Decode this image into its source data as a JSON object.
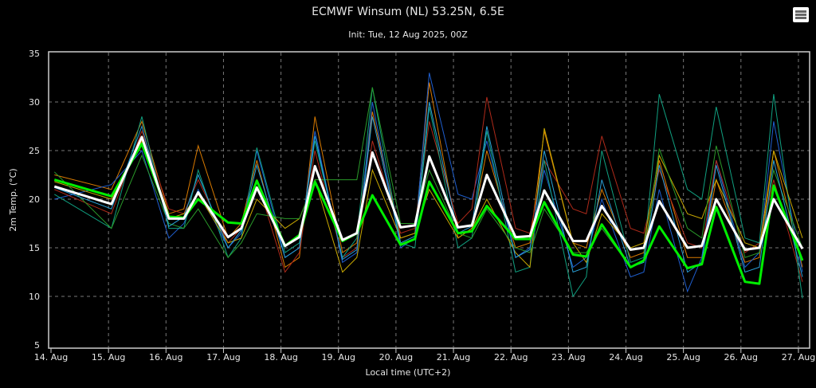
{
  "header": {
    "title": "ECMWF Winsum (NL) 53.25N, 6.5E",
    "subtitle": "Init: Tue, 12 Aug 2025, 00Z",
    "menu_icon": "hamburger-menu-icon"
  },
  "chart_data": {
    "type": "line",
    "title": "ECMWF Winsum (NL) 53.25N, 6.5E",
    "subtitle": "Init: Tue, 12 Aug 2025, 00Z",
    "xlabel": "Local time (UTC+2)",
    "ylabel": "2m Temp. (°C)",
    "ylim": [
      5,
      35
    ],
    "yticks": [
      "5",
      "10",
      "15",
      "20",
      "25",
      "30",
      "35"
    ],
    "xlim_days": [
      -0.05,
      13.2
    ],
    "xticks": [
      "14. Aug",
      "15. Aug",
      "16. Aug",
      "17. Aug",
      "18. Aug",
      "19. Aug",
      "20. Aug",
      "21. Aug",
      "22. Aug",
      "23. Aug",
      "24. Aug",
      "25. Aug",
      "26. Aug",
      "27. Aug"
    ],
    "grid": true,
    "x_days_since_14_aug": [
      0.06,
      1.05,
      1.58,
      2.05,
      2.31,
      2.56,
      3.08,
      3.31,
      3.58,
      4.07,
      4.32,
      4.59,
      5.07,
      5.32,
      5.59,
      6.08,
      6.33,
      6.58,
      7.08,
      7.32,
      7.58,
      8.08,
      8.33,
      8.58,
      9.08,
      9.31,
      9.58,
      10.08,
      10.31,
      10.58,
      11.07,
      11.32,
      11.57,
      12.07,
      12.32,
      12.57,
      13.07
    ],
    "members": [
      {
        "name": "member-1",
        "color": "#d97a00",
        "values": [
          22.5,
          21.0,
          28.0,
          18.5,
          19.0,
          25.5,
          16.0,
          17.5,
          24.0,
          13.0,
          14.0,
          28.5,
          14.5,
          15.5,
          29.0,
          16.0,
          16.5,
          32.0,
          16.0,
          17.0,
          25.0,
          15.0,
          15.5,
          27.0,
          15.5,
          15.0,
          21.0,
          14.0,
          14.5,
          24.0,
          14.0,
          14.0,
          22.0,
          13.5,
          14.0,
          25.0,
          13.0
        ]
      },
      {
        "name": "member-2",
        "color": "#1f5fd0",
        "values": [
          20.0,
          21.5,
          25.0,
          16.0,
          17.5,
          21.0,
          15.0,
          16.5,
          25.0,
          14.0,
          15.0,
          27.0,
          13.5,
          14.5,
          30.0,
          15.0,
          16.0,
          33.0,
          20.5,
          20.0,
          26.0,
          14.0,
          15.0,
          23.0,
          13.0,
          14.0,
          20.0,
          12.0,
          12.5,
          21.0,
          10.5,
          14.0,
          24.0,
          13.0,
          14.5,
          28.0,
          12.5
        ]
      },
      {
        "name": "member-3",
        "color": "#b02a1a",
        "values": [
          21.0,
          18.5,
          27.0,
          19.0,
          18.5,
          22.0,
          15.5,
          17.0,
          22.0,
          12.5,
          14.5,
          25.0,
          14.0,
          15.0,
          26.0,
          16.5,
          17.0,
          28.0,
          17.5,
          19.0,
          30.5,
          17.0,
          16.5,
          24.0,
          19.0,
          18.5,
          26.5,
          17.0,
          16.5,
          23.0,
          15.5,
          15.0,
          24.0,
          14.5,
          15.5,
          22.0,
          11.5
        ]
      },
      {
        "name": "member-4",
        "color": "#10a080",
        "values": [
          20.5,
          17.0,
          28.5,
          17.0,
          17.0,
          23.0,
          14.0,
          16.0,
          25.3,
          14.5,
          15.5,
          26.0,
          14.0,
          16.0,
          31.5,
          15.5,
          15.0,
          29.5,
          15.0,
          16.0,
          27.0,
          12.5,
          13.0,
          24.0,
          10.0,
          12.0,
          25.0,
          13.5,
          14.0,
          30.8,
          21.0,
          20.0,
          29.5,
          16.0,
          15.5,
          30.8,
          9.8
        ]
      },
      {
        "name": "member-5",
        "color": "#c8a800",
        "values": [
          21.8,
          20.0,
          26.0,
          18.0,
          18.5,
          20.5,
          15.5,
          16.0,
          20.0,
          17.0,
          18.0,
          22.0,
          12.5,
          14.0,
          23.0,
          16.0,
          16.5,
          21.0,
          16.0,
          17.0,
          20.0,
          14.5,
          13.0,
          27.3,
          15.5,
          13.5,
          18.5,
          15.0,
          15.5,
          24.5,
          18.5,
          18.0,
          22.0,
          15.5,
          15.0,
          25.0,
          16.0
        ]
      },
      {
        "name": "member-6",
        "color": "#2a9a2a",
        "values": [
          22.8,
          17.0,
          24.5,
          17.5,
          17.0,
          19.0,
          14.0,
          15.5,
          18.5,
          18.0,
          18.0,
          22.0,
          22.0,
          22.0,
          31.5,
          17.5,
          17.5,
          23.0,
          16.5,
          16.0,
          19.0,
          15.0,
          14.5,
          19.0,
          14.5,
          14.5,
          17.0,
          13.0,
          13.5,
          25.2,
          17.0,
          16.0,
          25.5,
          14.0,
          14.5,
          23.0,
          15.0
        ]
      },
      {
        "name": "member-7",
        "color": "#2aa0d8",
        "values": [
          21.2,
          19.0,
          27.5,
          17.2,
          18.2,
          22.5,
          15.0,
          16.8,
          23.5,
          14.0,
          15.0,
          26.5,
          13.8,
          14.8,
          28.5,
          15.5,
          16.2,
          30.0,
          16.5,
          17.2,
          27.5,
          14.0,
          14.8,
          25.0,
          12.5,
          13.0,
          22.0,
          13.0,
          13.5,
          23.5,
          12.5,
          13.5,
          23.5,
          12.5,
          13.0,
          24.0,
          12.0
        ]
      }
    ],
    "series": [
      {
        "name": "ensemble-mean",
        "color": "#ffffff",
        "values": [
          21.3,
          19.5,
          26.4,
          18.0,
          18.0,
          20.7,
          16.1,
          17.0,
          21.2,
          15.2,
          16.1,
          23.4,
          15.8,
          16.5,
          24.8,
          17.1,
          17.3,
          24.4,
          17.1,
          17.3,
          22.5,
          16.1,
          16.2,
          20.9,
          15.7,
          15.7,
          19.3,
          14.8,
          15.0,
          19.8,
          15.0,
          15.2,
          20.0,
          14.8,
          15.0,
          20.0,
          14.9
        ]
      },
      {
        "name": "control",
        "color": "#00ee00",
        "values": [
          22.0,
          20.3,
          25.7,
          18.2,
          18.1,
          20.0,
          17.6,
          17.5,
          21.9,
          15.2,
          16.3,
          21.8,
          15.7,
          16.5,
          20.4,
          15.3,
          15.9,
          21.8,
          16.5,
          16.7,
          19.3,
          15.9,
          15.9,
          19.7,
          14.3,
          14.1,
          17.4,
          13.0,
          13.7,
          17.2,
          12.9,
          13.3,
          19.2,
          11.5,
          11.3,
          21.4,
          13.7
        ]
      }
    ]
  }
}
